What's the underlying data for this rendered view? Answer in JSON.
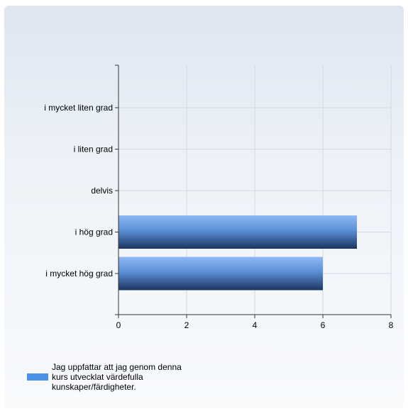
{
  "chart_data": {
    "type": "bar",
    "orientation": "horizontal",
    "categories": [
      "i mycket liten grad",
      "i liten grad",
      "delvis",
      "i hög grad",
      "i mycket hög grad"
    ],
    "series": [
      {
        "name": "Jag uppfattar att jag genom denna kurs utvecklat värdefulla kunskaper/färdigheter.",
        "values": [
          0,
          0,
          0,
          7,
          6
        ],
        "color": "#4a90e8"
      }
    ],
    "xlim": [
      0,
      8
    ],
    "xticks": [
      "0",
      "2",
      "4",
      "6",
      "8"
    ],
    "title": "",
    "xlabel": "",
    "ylabel": "",
    "grid": true,
    "legend_position": "bottom"
  }
}
